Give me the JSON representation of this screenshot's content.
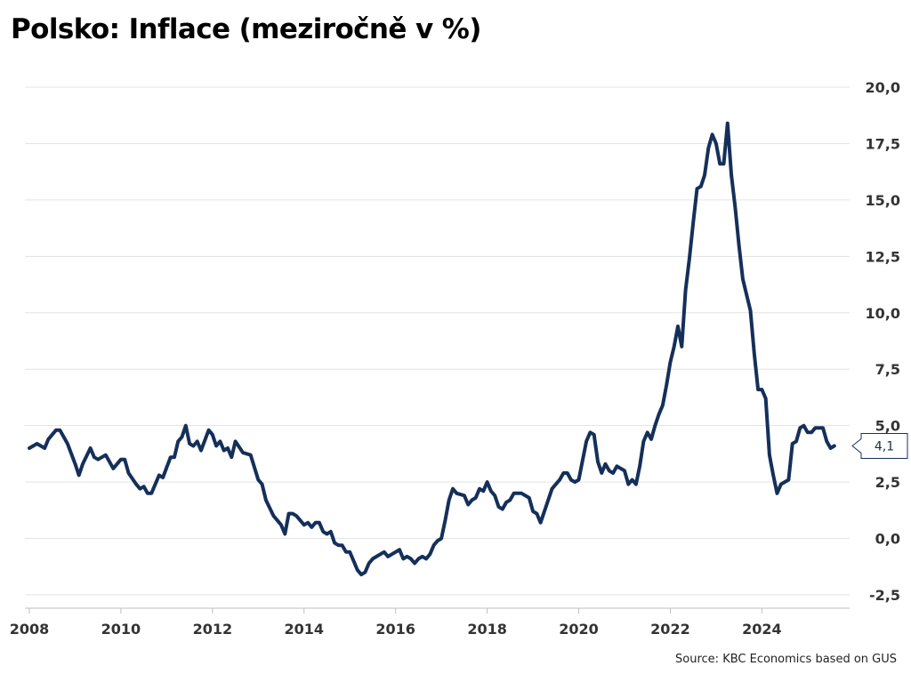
{
  "title": "Polsko: Inflace (meziročně v %)",
  "source": "Source: KBC Economics based on GUS",
  "chart_data": {
    "type": "line",
    "title": "Polsko: Inflace (meziročně v %)",
    "xlabel": "",
    "ylabel": "",
    "x_tick_labels": [
      "2008",
      "2010",
      "2012",
      "2014",
      "2016",
      "2018",
      "2020",
      "2022",
      "2024"
    ],
    "y_tick_labels": [
      "-2,5",
      "0,0",
      "2,5",
      "5,0",
      "7,5",
      "10,0",
      "12,5",
      "15,0",
      "17,5",
      "20,0"
    ],
    "ylim": [
      -2.5,
      20
    ],
    "xlim": [
      "2008-01",
      "2025-12"
    ],
    "grid": "horizontal",
    "y_axis_side": "right",
    "line_color": "#14305a",
    "last_value_label": "4,1",
    "series": [
      {
        "values": [
          {
            "x": "2008-01",
            "y": 4.0
          },
          {
            "x": "2008-03",
            "y": 4.2
          },
          {
            "x": "2008-05",
            "y": 4.0
          },
          {
            "x": "2008-06",
            "y": 4.4
          },
          {
            "x": "2008-08",
            "y": 4.8
          },
          {
            "x": "2008-09",
            "y": 4.8
          },
          {
            "x": "2008-11",
            "y": 4.2
          },
          {
            "x": "2009-01",
            "y": 3.3
          },
          {
            "x": "2009-02",
            "y": 2.8
          },
          {
            "x": "2009-03",
            "y": 3.3
          },
          {
            "x": "2009-05",
            "y": 4.0
          },
          {
            "x": "2009-06",
            "y": 3.6
          },
          {
            "x": "2009-07",
            "y": 3.5
          },
          {
            "x": "2009-09",
            "y": 3.7
          },
          {
            "x": "2009-11",
            "y": 3.1
          },
          {
            "x": "2010-01",
            "y": 3.5
          },
          {
            "x": "2010-02",
            "y": 3.5
          },
          {
            "x": "2010-03",
            "y": 2.9
          },
          {
            "x": "2010-05",
            "y": 2.4
          },
          {
            "x": "2010-06",
            "y": 2.2
          },
          {
            "x": "2010-07",
            "y": 2.3
          },
          {
            "x": "2010-08",
            "y": 2.0
          },
          {
            "x": "2010-09",
            "y": 2.0
          },
          {
            "x": "2010-11",
            "y": 2.8
          },
          {
            "x": "2010-12",
            "y": 2.7
          },
          {
            "x": "2011-02",
            "y": 3.6
          },
          {
            "x": "2011-03",
            "y": 3.6
          },
          {
            "x": "2011-04",
            "y": 4.3
          },
          {
            "x": "2011-05",
            "y": 4.5
          },
          {
            "x": "2011-06",
            "y": 5.0
          },
          {
            "x": "2011-07",
            "y": 4.2
          },
          {
            "x": "2011-08",
            "y": 4.1
          },
          {
            "x": "2011-09",
            "y": 4.3
          },
          {
            "x": "2011-10",
            "y": 3.9
          },
          {
            "x": "2011-12",
            "y": 4.8
          },
          {
            "x": "2012-01",
            "y": 4.6
          },
          {
            "x": "2012-02",
            "y": 4.1
          },
          {
            "x": "2012-03",
            "y": 4.3
          },
          {
            "x": "2012-04",
            "y": 3.9
          },
          {
            "x": "2012-05",
            "y": 4.0
          },
          {
            "x": "2012-06",
            "y": 3.6
          },
          {
            "x": "2012-07",
            "y": 4.3
          },
          {
            "x": "2012-09",
            "y": 3.8
          },
          {
            "x": "2012-11",
            "y": 3.7
          },
          {
            "x": "2013-01",
            "y": 2.6
          },
          {
            "x": "2013-02",
            "y": 2.4
          },
          {
            "x": "2013-03",
            "y": 1.7
          },
          {
            "x": "2013-05",
            "y": 1.0
          },
          {
            "x": "2013-07",
            "y": 0.6
          },
          {
            "x": "2013-08",
            "y": 0.2
          },
          {
            "x": "2013-09",
            "y": 1.1
          },
          {
            "x": "2013-10",
            "y": 1.1
          },
          {
            "x": "2013-11",
            "y": 1.0
          },
          {
            "x": "2014-01",
            "y": 0.6
          },
          {
            "x": "2014-02",
            "y": 0.7
          },
          {
            "x": "2014-03",
            "y": 0.5
          },
          {
            "x": "2014-04",
            "y": 0.7
          },
          {
            "x": "2014-05",
            "y": 0.7
          },
          {
            "x": "2014-06",
            "y": 0.3
          },
          {
            "x": "2014-07",
            "y": 0.2
          },
          {
            "x": "2014-08",
            "y": 0.3
          },
          {
            "x": "2014-09",
            "y": -0.2
          },
          {
            "x": "2014-10",
            "y": -0.3
          },
          {
            "x": "2014-11",
            "y": -0.3
          },
          {
            "x": "2014-12",
            "y": -0.6
          },
          {
            "x": "2015-01",
            "y": -0.6
          },
          {
            "x": "2015-02",
            "y": -1.0
          },
          {
            "x": "2015-03",
            "y": -1.4
          },
          {
            "x": "2015-04",
            "y": -1.6
          },
          {
            "x": "2015-05",
            "y": -1.5
          },
          {
            "x": "2015-06",
            "y": -1.1
          },
          {
            "x": "2015-07",
            "y": -0.9
          },
          {
            "x": "2015-09",
            "y": -0.7
          },
          {
            "x": "2015-10",
            "y": -0.6
          },
          {
            "x": "2015-11",
            "y": -0.8
          },
          {
            "x": "2016-01",
            "y": -0.6
          },
          {
            "x": "2016-02",
            "y": -0.5
          },
          {
            "x": "2016-03",
            "y": -0.9
          },
          {
            "x": "2016-04",
            "y": -0.8
          },
          {
            "x": "2016-05",
            "y": -0.9
          },
          {
            "x": "2016-06",
            "y": -1.1
          },
          {
            "x": "2016-07",
            "y": -0.9
          },
          {
            "x": "2016-08",
            "y": -0.8
          },
          {
            "x": "2016-09",
            "y": -0.9
          },
          {
            "x": "2016-10",
            "y": -0.7
          },
          {
            "x": "2016-11",
            "y": -0.3
          },
          {
            "x": "2016-12",
            "y": -0.1
          },
          {
            "x": "2017-01",
            "y": 0.0
          },
          {
            "x": "2017-02",
            "y": 0.8
          },
          {
            "x": "2017-03",
            "y": 1.7
          },
          {
            "x": "2017-04",
            "y": 2.2
          },
          {
            "x": "2017-05",
            "y": 2.0
          },
          {
            "x": "2017-07",
            "y": 1.9
          },
          {
            "x": "2017-08",
            "y": 1.5
          },
          {
            "x": "2017-09",
            "y": 1.7
          },
          {
            "x": "2017-10",
            "y": 1.8
          },
          {
            "x": "2017-11",
            "y": 2.2
          },
          {
            "x": "2017-12",
            "y": 2.1
          },
          {
            "x": "2018-01",
            "y": 2.5
          },
          {
            "x": "2018-02",
            "y": 2.1
          },
          {
            "x": "2018-03",
            "y": 1.9
          },
          {
            "x": "2018-04",
            "y": 1.4
          },
          {
            "x": "2018-05",
            "y": 1.3
          },
          {
            "x": "2018-06",
            "y": 1.6
          },
          {
            "x": "2018-07",
            "y": 1.7
          },
          {
            "x": "2018-08",
            "y": 2.0
          },
          {
            "x": "2018-10",
            "y": 2.0
          },
          {
            "x": "2018-12",
            "y": 1.8
          },
          {
            "x": "2019-01",
            "y": 1.2
          },
          {
            "x": "2019-02",
            "y": 1.1
          },
          {
            "x": "2019-03",
            "y": 0.7
          },
          {
            "x": "2019-04",
            "y": 1.2
          },
          {
            "x": "2019-06",
            "y": 2.2
          },
          {
            "x": "2019-07",
            "y": 2.4
          },
          {
            "x": "2019-08",
            "y": 2.6
          },
          {
            "x": "2019-09",
            "y": 2.9
          },
          {
            "x": "2019-10",
            "y": 2.9
          },
          {
            "x": "2019-11",
            "y": 2.6
          },
          {
            "x": "2019-12",
            "y": 2.5
          },
          {
            "x": "2020-01",
            "y": 2.6
          },
          {
            "x": "2020-03",
            "y": 4.3
          },
          {
            "x": "2020-04",
            "y": 4.7
          },
          {
            "x": "2020-05",
            "y": 4.6
          },
          {
            "x": "2020-06",
            "y": 3.4
          },
          {
            "x": "2020-07",
            "y": 2.9
          },
          {
            "x": "2020-08",
            "y": 3.3
          },
          {
            "x": "2020-09",
            "y": 3.0
          },
          {
            "x": "2020-10",
            "y": 2.9
          },
          {
            "x": "2020-11",
            "y": 3.2
          },
          {
            "x": "2021-01",
            "y": 3.0
          },
          {
            "x": "2021-02",
            "y": 2.4
          },
          {
            "x": "2021-03",
            "y": 2.6
          },
          {
            "x": "2021-04",
            "y": 2.4
          },
          {
            "x": "2021-05",
            "y": 3.2
          },
          {
            "x": "2021-06",
            "y": 4.3
          },
          {
            "x": "2021-07",
            "y": 4.7
          },
          {
            "x": "2021-08",
            "y": 4.4
          },
          {
            "x": "2021-09",
            "y": 5.0
          },
          {
            "x": "2021-10",
            "y": 5.5
          },
          {
            "x": "2021-11",
            "y": 5.9
          },
          {
            "x": "2021-12",
            "y": 6.8
          },
          {
            "x": "2022-01",
            "y": 7.8
          },
          {
            "x": "2022-02",
            "y": 8.5
          },
          {
            "x": "2022-03",
            "y": 9.4
          },
          {
            "x": "2022-04",
            "y": 8.5
          },
          {
            "x": "2022-05",
            "y": 11.0
          },
          {
            "x": "2022-06",
            "y": 12.4
          },
          {
            "x": "2022-07",
            "y": 14.0
          },
          {
            "x": "2022-08",
            "y": 15.5
          },
          {
            "x": "2022-09",
            "y": 15.6
          },
          {
            "x": "2022-10",
            "y": 16.1
          },
          {
            "x": "2022-11",
            "y": 17.3
          },
          {
            "x": "2022-12",
            "y": 17.9
          },
          {
            "x": "2023-01",
            "y": 17.5
          },
          {
            "x": "2023-02",
            "y": 16.6
          },
          {
            "x": "2023-03",
            "y": 16.6
          },
          {
            "x": "2023-04",
            "y": 18.4
          },
          {
            "x": "2023-05",
            "y": 16.1
          },
          {
            "x": "2023-06",
            "y": 14.7
          },
          {
            "x": "2023-07",
            "y": 13.0
          },
          {
            "x": "2023-08",
            "y": 11.5
          },
          {
            "x": "2023-09",
            "y": 10.8
          },
          {
            "x": "2023-10",
            "y": 10.1
          },
          {
            "x": "2023-11",
            "y": 8.2
          },
          {
            "x": "2023-12",
            "y": 6.6
          },
          {
            "x": "2024-01",
            "y": 6.6
          },
          {
            "x": "2024-02",
            "y": 6.2
          },
          {
            "x": "2024-03",
            "y": 3.7
          },
          {
            "x": "2024-04",
            "y": 2.8
          },
          {
            "x": "2024-05",
            "y": 2.0
          },
          {
            "x": "2024-06",
            "y": 2.4
          },
          {
            "x": "2024-07",
            "y": 2.5
          },
          {
            "x": "2024-08",
            "y": 2.6
          },
          {
            "x": "2024-09",
            "y": 4.2
          },
          {
            "x": "2024-10",
            "y": 4.3
          },
          {
            "x": "2024-11",
            "y": 4.9
          },
          {
            "x": "2024-12",
            "y": 5.0
          },
          {
            "x": "2025-01",
            "y": 4.7
          },
          {
            "x": "2025-02",
            "y": 4.7
          },
          {
            "x": "2025-03",
            "y": 4.9
          },
          {
            "x": "2025-04",
            "y": 4.9
          },
          {
            "x": "2025-05",
            "y": 4.9
          },
          {
            "x": "2025-06",
            "y": 4.3
          },
          {
            "x": "2025-07",
            "y": 4.0
          },
          {
            "x": "2025-08",
            "y": 4.1
          }
        ]
      }
    ]
  }
}
